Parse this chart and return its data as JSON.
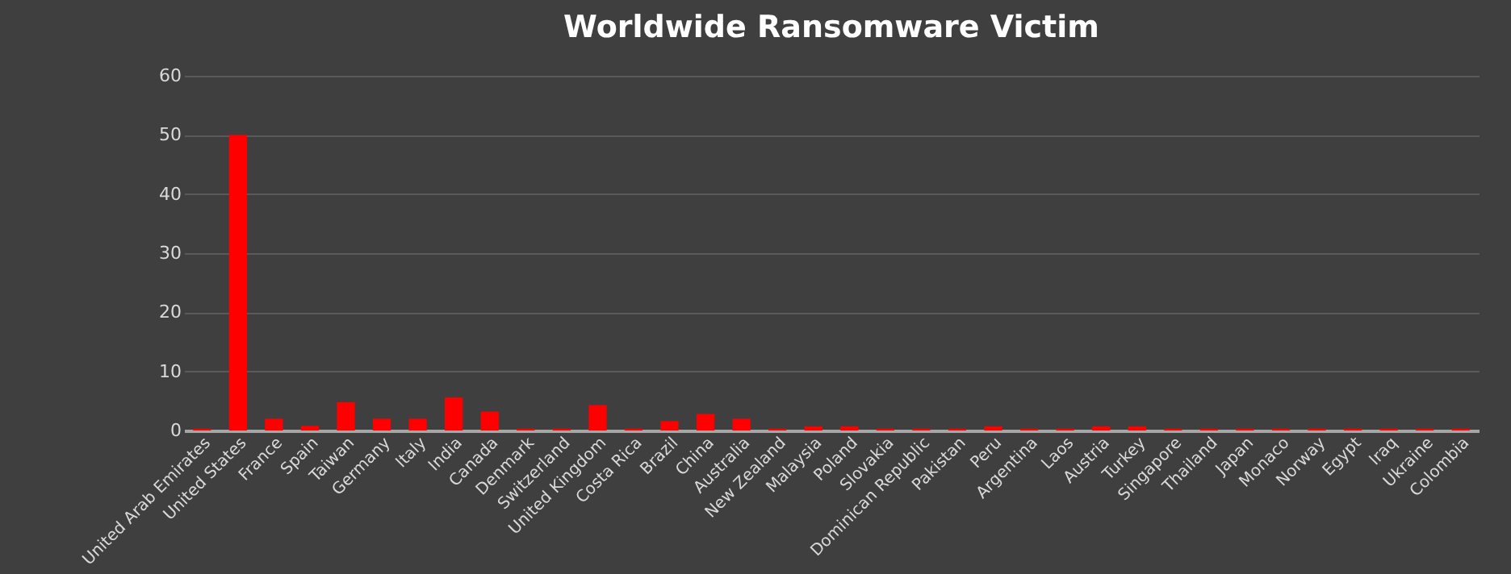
{
  "chart_data": {
    "type": "bar",
    "title": "Worldwide Ransomware Victim",
    "categories": [
      "United Arab Emirates",
      "United States",
      "France",
      "Spain",
      "Taiwan",
      "Germany",
      "Italy",
      "India",
      "Canada",
      "Denmark",
      "Switzerland",
      "United Kingdom",
      "Costa Rica",
      "Brazil",
      "China",
      "Australia",
      "New Zealand",
      "Malaysia",
      "Poland",
      "Slovakia",
      "Dominican Republic",
      "Pakistan",
      "Peru",
      "Argentina",
      "Laos",
      "Austria",
      "Turkey",
      "Singapore",
      "Thailand",
      "Japan",
      "Monaco",
      "Norway",
      "Egypt",
      "Iraq",
      "Ukraine",
      "Colombia"
    ],
    "values": [
      0.3,
      50,
      2,
      0.8,
      4.8,
      2,
      2,
      5.6,
      3.2,
      0.3,
      0.3,
      4.3,
      0.3,
      1.6,
      2.8,
      2,
      0.3,
      0.7,
      0.7,
      0.3,
      0.3,
      0.3,
      0.7,
      0.3,
      0.3,
      0.7,
      0.7,
      0.3,
      0.3,
      0.3,
      0.3,
      0.3,
      0.3,
      0.3,
      0.3,
      0.3
    ],
    "color": "#ff0000",
    "ylim": [
      0,
      60
    ],
    "yticks": [
      0,
      10,
      20,
      30,
      40,
      50,
      60
    ],
    "grid": "y"
  }
}
